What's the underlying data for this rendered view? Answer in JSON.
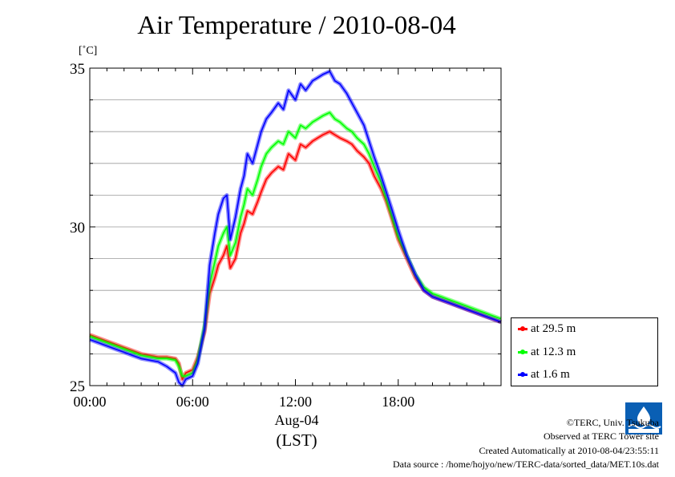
{
  "chart_data": {
    "type": "line",
    "title": "Air Temperature / 2010-08-04",
    "ylabel": "[˚C]",
    "xlabel": "(LST)",
    "x_sublabel": "Aug-04",
    "ylim": [
      25,
      35
    ],
    "xlim": [
      0,
      24
    ],
    "y_ticks": [
      25,
      30,
      35
    ],
    "y_minor_step": 1,
    "x_ticks": [
      0,
      6,
      12,
      18
    ],
    "x_tick_labels": [
      "00:00",
      "06:00",
      "12:00",
      "18:00"
    ],
    "grid": true,
    "legend_position": "right-bottom outside",
    "series": [
      {
        "name": "at 29.5 m",
        "color": "#ff0000",
        "x": [
          0,
          0.5,
          1,
          1.5,
          2,
          2.5,
          3,
          3.5,
          4,
          4.5,
          5,
          5.2,
          5.4,
          5.6,
          6,
          6.3,
          6.7,
          7,
          7.3,
          7.5,
          7.8,
          8,
          8.2,
          8.5,
          8.8,
          9,
          9.2,
          9.5,
          9.8,
          10,
          10.3,
          10.6,
          11,
          11.3,
          11.6,
          12,
          12.3,
          12.6,
          13,
          13.3,
          13.6,
          14,
          14.3,
          14.6,
          15,
          15.3,
          15.6,
          16,
          16.3,
          16.6,
          17,
          17.3,
          17.6,
          18,
          18.5,
          19,
          19.5,
          20,
          20.5,
          21,
          21.5,
          22,
          22.5,
          23,
          23.5,
          24
        ],
        "values": [
          26.6,
          26.5,
          26.4,
          26.3,
          26.2,
          26.1,
          26.0,
          25.95,
          25.9,
          25.9,
          25.85,
          25.7,
          25.2,
          25.4,
          25.5,
          25.9,
          26.7,
          27.9,
          28.4,
          28.8,
          29.1,
          29.4,
          28.7,
          29.0,
          29.8,
          30.1,
          30.5,
          30.4,
          30.8,
          31.1,
          31.5,
          31.7,
          31.9,
          31.8,
          32.3,
          32.1,
          32.6,
          32.5,
          32.7,
          32.8,
          32.9,
          33.0,
          32.9,
          32.8,
          32.7,
          32.6,
          32.4,
          32.2,
          32.0,
          31.6,
          31.2,
          30.8,
          30.3,
          29.6,
          29.0,
          28.4,
          28.0,
          27.8,
          27.7,
          27.6,
          27.5,
          27.4,
          27.3,
          27.2,
          27.1,
          27.0
        ]
      },
      {
        "name": "at 12.3 m",
        "color": "#00ff00",
        "x": [
          0,
          0.5,
          1,
          1.5,
          2,
          2.5,
          3,
          3.5,
          4,
          4.5,
          5,
          5.2,
          5.4,
          5.6,
          6,
          6.3,
          6.7,
          7,
          7.3,
          7.5,
          7.8,
          8,
          8.2,
          8.5,
          8.8,
          9,
          9.2,
          9.5,
          9.8,
          10,
          10.3,
          10.6,
          11,
          11.3,
          11.6,
          12,
          12.3,
          12.6,
          13,
          13.3,
          13.6,
          14,
          14.3,
          14.6,
          15,
          15.3,
          15.6,
          16,
          16.3,
          16.6,
          17,
          17.3,
          17.6,
          18,
          18.5,
          19,
          19.5,
          20,
          20.5,
          21,
          21.5,
          22,
          22.5,
          23,
          23.5,
          24
        ],
        "values": [
          26.55,
          26.45,
          26.35,
          26.25,
          26.15,
          26.05,
          25.95,
          25.9,
          25.85,
          25.85,
          25.8,
          25.6,
          25.3,
          25.3,
          25.4,
          25.8,
          26.9,
          28.2,
          28.9,
          29.4,
          29.8,
          30.0,
          29.1,
          29.5,
          30.3,
          30.7,
          31.2,
          31.0,
          31.5,
          31.9,
          32.3,
          32.5,
          32.7,
          32.6,
          33.0,
          32.8,
          33.2,
          33.1,
          33.3,
          33.4,
          33.5,
          33.6,
          33.4,
          33.3,
          33.1,
          33.0,
          32.8,
          32.6,
          32.3,
          31.9,
          31.4,
          30.9,
          30.4,
          29.7,
          29.1,
          28.5,
          28.1,
          27.9,
          27.8,
          27.7,
          27.6,
          27.5,
          27.4,
          27.3,
          27.2,
          27.1
        ]
      },
      {
        "name": "at 1.6 m",
        "color": "#0000ff",
        "x": [
          0,
          0.5,
          1,
          1.5,
          2,
          2.5,
          3,
          3.5,
          4,
          4.5,
          5,
          5.2,
          5.4,
          5.6,
          6,
          6.3,
          6.7,
          7,
          7.3,
          7.5,
          7.8,
          8,
          8.2,
          8.5,
          8.8,
          9,
          9.2,
          9.5,
          9.8,
          10,
          10.3,
          10.6,
          11,
          11.3,
          11.6,
          12,
          12.3,
          12.6,
          13,
          13.3,
          13.6,
          14,
          14.3,
          14.6,
          15,
          15.3,
          15.6,
          16,
          16.3,
          16.6,
          17,
          17.3,
          17.6,
          18,
          18.5,
          19,
          19.5,
          20,
          20.5,
          21,
          21.5,
          22,
          22.5,
          23,
          23.5,
          24
        ],
        "values": [
          26.45,
          26.35,
          26.25,
          26.15,
          26.05,
          25.95,
          25.85,
          25.8,
          25.75,
          25.6,
          25.4,
          25.1,
          25.0,
          25.2,
          25.3,
          25.7,
          26.8,
          28.8,
          29.8,
          30.4,
          30.9,
          31.0,
          29.6,
          30.3,
          31.2,
          31.6,
          32.3,
          32.0,
          32.6,
          33.0,
          33.4,
          33.6,
          33.9,
          33.7,
          34.3,
          34.0,
          34.5,
          34.3,
          34.6,
          34.7,
          34.8,
          34.9,
          34.6,
          34.5,
          34.2,
          33.9,
          33.6,
          33.2,
          32.7,
          32.2,
          31.6,
          31.1,
          30.6,
          29.9,
          29.1,
          28.5,
          28.0,
          27.8,
          27.7,
          27.6,
          27.5,
          27.4,
          27.3,
          27.2,
          27.1,
          27.0
        ]
      }
    ]
  },
  "footer": {
    "copyright": "©TERC, Univ. Tsukuba",
    "observed": "Observed at TERC Tower site",
    "created": "Created Automatically at 2010-08-04/23:55:11",
    "source": "Data source : /home/hojyo/new/TERC-data/sorted_data/MET.10s.dat"
  }
}
